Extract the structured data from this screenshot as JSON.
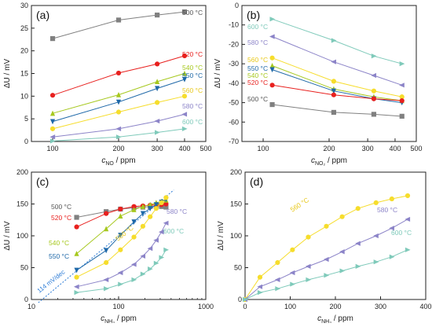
{
  "chart_data": [
    {
      "panel": "(a)",
      "type": "line",
      "xscale": "log",
      "xlim": [
        80,
        500
      ],
      "ylim": [
        0,
        30
      ],
      "xticks": [
        "100",
        "200",
        "300",
        "400",
        "500"
      ],
      "yticks": [
        "0",
        "5",
        "10",
        "15",
        "20",
        "25",
        "30"
      ],
      "xlabel": "c",
      "xlabel_sub": "NO",
      "xlabel_unit": " / ppm",
      "ylabel": "ΔU / mV",
      "series": [
        {
          "name": "500 °C",
          "color": "#808080",
          "marker": "square",
          "x": [
            100,
            200,
            300,
            400
          ],
          "y": [
            22.7,
            26.8,
            27.9,
            28.6
          ]
        },
        {
          "name": "520 °C",
          "color": "#e8201e",
          "marker": "circle",
          "x": [
            100,
            200,
            300,
            400
          ],
          "y": [
            10.2,
            15.1,
            17.1,
            18.9
          ]
        },
        {
          "name": "540 °C",
          "color": "#a6c81e",
          "marker": "triangle-up",
          "x": [
            100,
            200,
            300,
            400
          ],
          "y": [
            6.2,
            10.3,
            13.2,
            15.0
          ]
        },
        {
          "name": "550 °C",
          "color": "#1e68a8",
          "marker": "triangle-down",
          "x": [
            100,
            200,
            300,
            400
          ],
          "y": [
            4.4,
            8.7,
            11.7,
            13.7
          ]
        },
        {
          "name": "560 °C",
          "color": "#f6dd2c",
          "marker": "circle",
          "x": [
            100,
            200,
            300,
            400
          ],
          "y": [
            2.8,
            6.5,
            8.6,
            10.0
          ]
        },
        {
          "name": "580 °C",
          "color": "#8c84c8",
          "marker": "triangle-left",
          "x": [
            100,
            200,
            300,
            400
          ],
          "y": [
            1.0,
            2.8,
            4.5,
            6.0
          ]
        },
        {
          "name": "600 °C",
          "color": "#7fcaba",
          "marker": "triangle-right",
          "x": [
            100,
            200,
            300,
            400
          ],
          "y": [
            0.1,
            1.0,
            2.0,
            2.8
          ]
        }
      ]
    },
    {
      "panel": "(b)",
      "type": "line",
      "xscale": "log",
      "xlim": [
        80,
        500
      ],
      "ylim": [
        -70,
        0
      ],
      "xticks": [
        "100",
        "200",
        "300",
        "400",
        "500"
      ],
      "yticks": [
        "0",
        "-10",
        "-20",
        "-30",
        "-40",
        "-50",
        "-60",
        "-70"
      ],
      "xlabel": "c",
      "xlabel_sub": "NO₂",
      "xlabel_unit": " / ppm",
      "ylabel": "ΔU / mV",
      "series": [
        {
          "name": "600 °C",
          "color": "#7fcaba",
          "marker": "triangle-right",
          "x": [
            110,
            210,
            320,
            430
          ],
          "y": [
            -7,
            -18,
            -26,
            -30
          ]
        },
        {
          "name": "580 °C",
          "color": "#8c84c8",
          "marker": "triangle-left",
          "x": [
            110,
            210,
            320,
            430
          ],
          "y": [
            -16,
            -29,
            -36,
            -41
          ]
        },
        {
          "name": "560 °C",
          "color": "#f6dd2c",
          "marker": "circle",
          "x": [
            110,
            210,
            320,
            430
          ],
          "y": [
            -27,
            -39,
            -44,
            -47
          ]
        },
        {
          "name": "540 °C",
          "color": "#a6c81e",
          "marker": "triangle-up",
          "x": [
            110,
            210,
            320,
            430
          ],
          "y": [
            -31,
            -43,
            -47,
            -49
          ]
        },
        {
          "name": "550 °C",
          "color": "#1e68a8",
          "marker": "triangle-down",
          "x": [
            110,
            210,
            320,
            430
          ],
          "y": [
            -33,
            -44,
            -48,
            -50
          ]
        },
        {
          "name": "520 °C",
          "color": "#e8201e",
          "marker": "circle",
          "x": [
            110,
            210,
            320,
            430
          ],
          "y": [
            -41,
            -46,
            -48,
            -49
          ]
        },
        {
          "name": "500 °C",
          "color": "#808080",
          "marker": "square",
          "x": [
            110,
            210,
            320,
            430
          ],
          "y": [
            -51,
            -55,
            -56,
            -57
          ]
        }
      ]
    },
    {
      "panel": "(c)",
      "type": "line",
      "xscale": "log",
      "xlim": [
        10,
        1000
      ],
      "ylim": [
        0,
        200
      ],
      "xticks": [
        "10",
        "100",
        "1000"
      ],
      "yticks": [
        "0",
        "50",
        "100",
        "150",
        "200"
      ],
      "xlabel": "c",
      "xlabel_sub": "NH₃",
      "xlabel_unit": " / ppm",
      "ylabel": "ΔU / mV",
      "annotation": "114 mV/dec",
      "trendline": {
        "x": [
          12,
          430
        ],
        "y": [
          -5,
          172
        ]
      },
      "series": [
        {
          "name": "500 °C",
          "color": "#808080",
          "marker": "square",
          "x": [
            33,
            72,
            105,
            150,
            190,
            230,
            270,
            310,
            350
          ],
          "y": [
            129,
            138,
            142,
            144,
            145,
            146,
            146,
            146,
            145
          ]
        },
        {
          "name": "520 °C",
          "color": "#e8201e",
          "marker": "circle",
          "x": [
            33,
            72,
            105,
            150,
            190,
            230,
            270,
            310,
            350
          ],
          "y": [
            114,
            135,
            142,
            146,
            147,
            148,
            149,
            149,
            150
          ]
        },
        {
          "name": "540 °C",
          "color": "#a6c81e",
          "marker": "triangle-up",
          "x": [
            33,
            72,
            105,
            150,
            190,
            230,
            270,
            310,
            350
          ],
          "y": [
            72,
            111,
            131,
            141,
            146,
            149,
            152,
            154,
            156
          ]
        },
        {
          "name": "550 °C",
          "color": "#1e68a8",
          "marker": "triangle-down",
          "x": [
            33,
            72,
            105,
            150,
            190,
            230,
            270,
            310,
            350
          ],
          "y": [
            46,
            77,
            101,
            122,
            135,
            143,
            149,
            153,
            157
          ]
        },
        {
          "name": "560 °C",
          "color": "#f6dd2c",
          "marker": "circle",
          "x": [
            33,
            72,
            105,
            150,
            190,
            230,
            270,
            310,
            350
          ],
          "y": [
            35,
            58,
            78,
            98,
            115,
            130,
            143,
            152,
            160
          ]
        },
        {
          "name": "580 °C",
          "color": "#8c84c8",
          "marker": "triangle-left",
          "x": [
            33,
            72,
            105,
            150,
            190,
            230,
            270,
            310,
            350
          ],
          "y": [
            20,
            31,
            42,
            55,
            68,
            80,
            93,
            106,
            120
          ]
        },
        {
          "name": "600 °C",
          "color": "#7fcaba",
          "marker": "triangle-right",
          "x": [
            33,
            72,
            105,
            150,
            190,
            230,
            270,
            310,
            350
          ],
          "y": [
            11,
            17,
            24,
            31,
            40,
            48,
            57,
            66,
            78
          ]
        }
      ]
    },
    {
      "panel": "(d)",
      "type": "line",
      "xscale": "linear",
      "xlim": [
        0,
        400
      ],
      "ylim": [
        0,
        200
      ],
      "xticks": [
        "0",
        "100",
        "200",
        "300",
        "400"
      ],
      "yticks": [
        "0",
        "50",
        "100",
        "150",
        "200"
      ],
      "xlabel": "c",
      "xlabel_sub": "NH₃",
      "xlabel_unit": " / ppm",
      "ylabel": "ΔU / mV",
      "series": [
        {
          "name": "560 °C",
          "color": "#f6dd2c",
          "marker": "circle",
          "x": [
            0,
            33,
            72,
            105,
            140,
            180,
            215,
            250,
            290,
            325,
            360
          ],
          "y": [
            0,
            35,
            58,
            78,
            98,
            115,
            130,
            143,
            152,
            158,
            163
          ]
        },
        {
          "name": "580 °C",
          "color": "#8c84c8",
          "marker": "triangle-left",
          "x": [
            0,
            33,
            72,
            105,
            140,
            180,
            215,
            250,
            290,
            325,
            360
          ],
          "y": [
            0,
            20,
            31,
            42,
            52,
            63,
            75,
            88,
            100,
            112,
            126
          ]
        },
        {
          "name": "600 °C",
          "color": "#7fcaba",
          "marker": "triangle-right",
          "x": [
            0,
            33,
            72,
            105,
            140,
            180,
            215,
            250,
            290,
            325,
            360
          ],
          "y": [
            0,
            11,
            17,
            24,
            31,
            38,
            45,
            52,
            59,
            67,
            78
          ]
        }
      ]
    }
  ]
}
